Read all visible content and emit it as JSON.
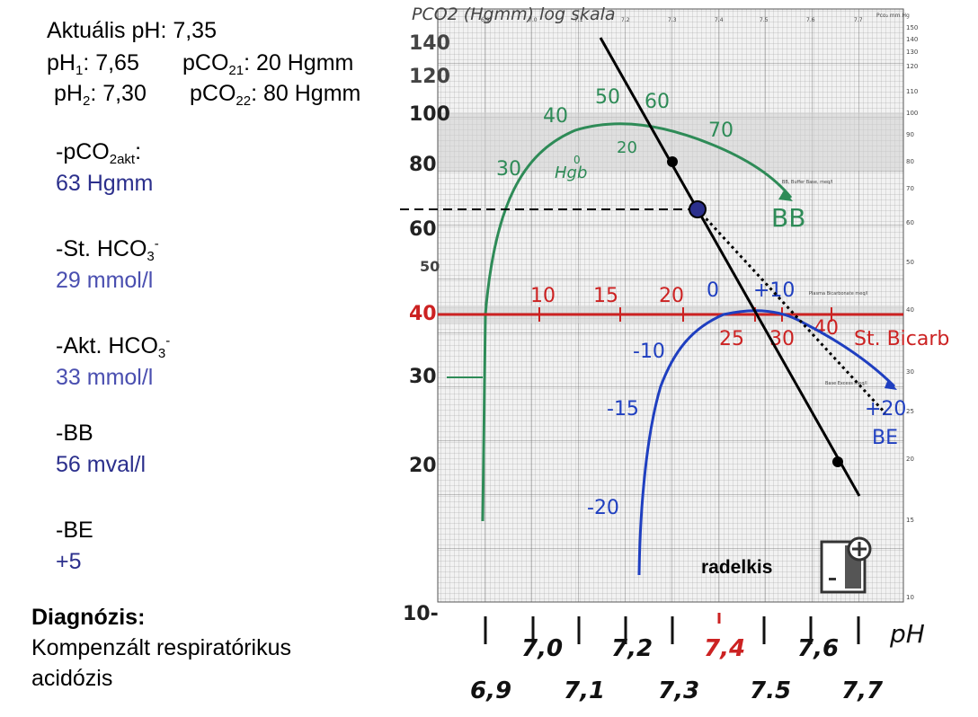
{
  "params": {
    "actual_ph": "Aktuális pH: 7,35",
    "ph1_label": "pH",
    "ph1_sub": "1",
    "ph1_value": ": 7,65",
    "pco21_label": "pCO",
    "pco21_sub": "21",
    "pco21_value": ": 20 Hgmm",
    "ph2_label": "pH",
    "ph2_sub": "2",
    "ph2_value": ": 7,30",
    "pco22_label": "pCO",
    "pco22_sub": "22",
    "pco22_value": ": 80 Hgmm"
  },
  "results": {
    "pco2_label": "-pCO",
    "pco2_sub": "2akt",
    "pco2_suffix": ":",
    "pco2_value": "63 Hgmm",
    "st_hco3_label": "-St. HCO",
    "st_hco3_sub": "3",
    "st_hco3_sup": "-",
    "st_hco3_value": "29 mmol/l",
    "akt_hco3_label": "-Akt. HCO",
    "akt_hco3_sub": "3",
    "akt_hco3_sup": "-",
    "akt_hco3_value": "33 mmol/l",
    "bb_label": "-BB",
    "bb_value": "56 mval/l",
    "be_label": "-BE",
    "be_value": "+5"
  },
  "diagnosis": {
    "title": "Diagnózis:",
    "line1": "Kompenzált respiratórikus",
    "line2": "acidózis"
  },
  "nomogram": {
    "title_hand": "PCO2 (Hgmm) log skala",
    "pco2_axis_header": "Pco₂ mm Hg",
    "top_ph_ticks": [
      "6.9",
      "7.0",
      "7.1",
      "7.2",
      "7.3",
      "7.4",
      "7.5",
      "7.6",
      "7.7"
    ],
    "left_pco2_labels": [
      "140",
      "120",
      "100",
      "80",
      "60",
      "50",
      "40",
      "30",
      "20",
      "10-"
    ],
    "right_pco2_ticks": [
      "150",
      "140",
      "130",
      "120",
      "110",
      "100",
      "90",
      "80",
      "70",
      "60",
      "50",
      "40",
      "30",
      "25",
      "20",
      "15",
      "10"
    ],
    "bottom_ph_upper": [
      "7,0",
      "7,2",
      "7,4",
      "7,6"
    ],
    "bottom_ph_lower": [
      "6,9",
      "7,1",
      "7,3",
      "7.5",
      "7,7"
    ],
    "ph_axis_label": "pH",
    "bb_label": "BB",
    "bb_curve_labels": [
      "30",
      "40",
      "50",
      "60",
      "70"
    ],
    "hgb_label": "Hgb",
    "hgb_labels": [
      "0",
      "20"
    ],
    "bb_printed_label": "BB, Buffer Base, meq/l",
    "st_hco3_labels": [
      "10",
      "15",
      "20",
      "25",
      "30",
      "40"
    ],
    "st_bicarb_label": "St. Bicarb",
    "plasma_bicarb_printed": "Plasma Bicarbonate meq/l",
    "be_labels": [
      "-20",
      "-15",
      "-10",
      "0",
      "+10",
      "+20"
    ],
    "be_label": "BE",
    "be_printed_label": "Base Excess meq/l",
    "colors": {
      "bb_curve": "#2e8b57",
      "st_hco3": "#cc2222",
      "be_curve": "#1f3fc0",
      "line": "#000000",
      "marker": "#2b2f8c"
    },
    "logo_text": "radelkis"
  }
}
